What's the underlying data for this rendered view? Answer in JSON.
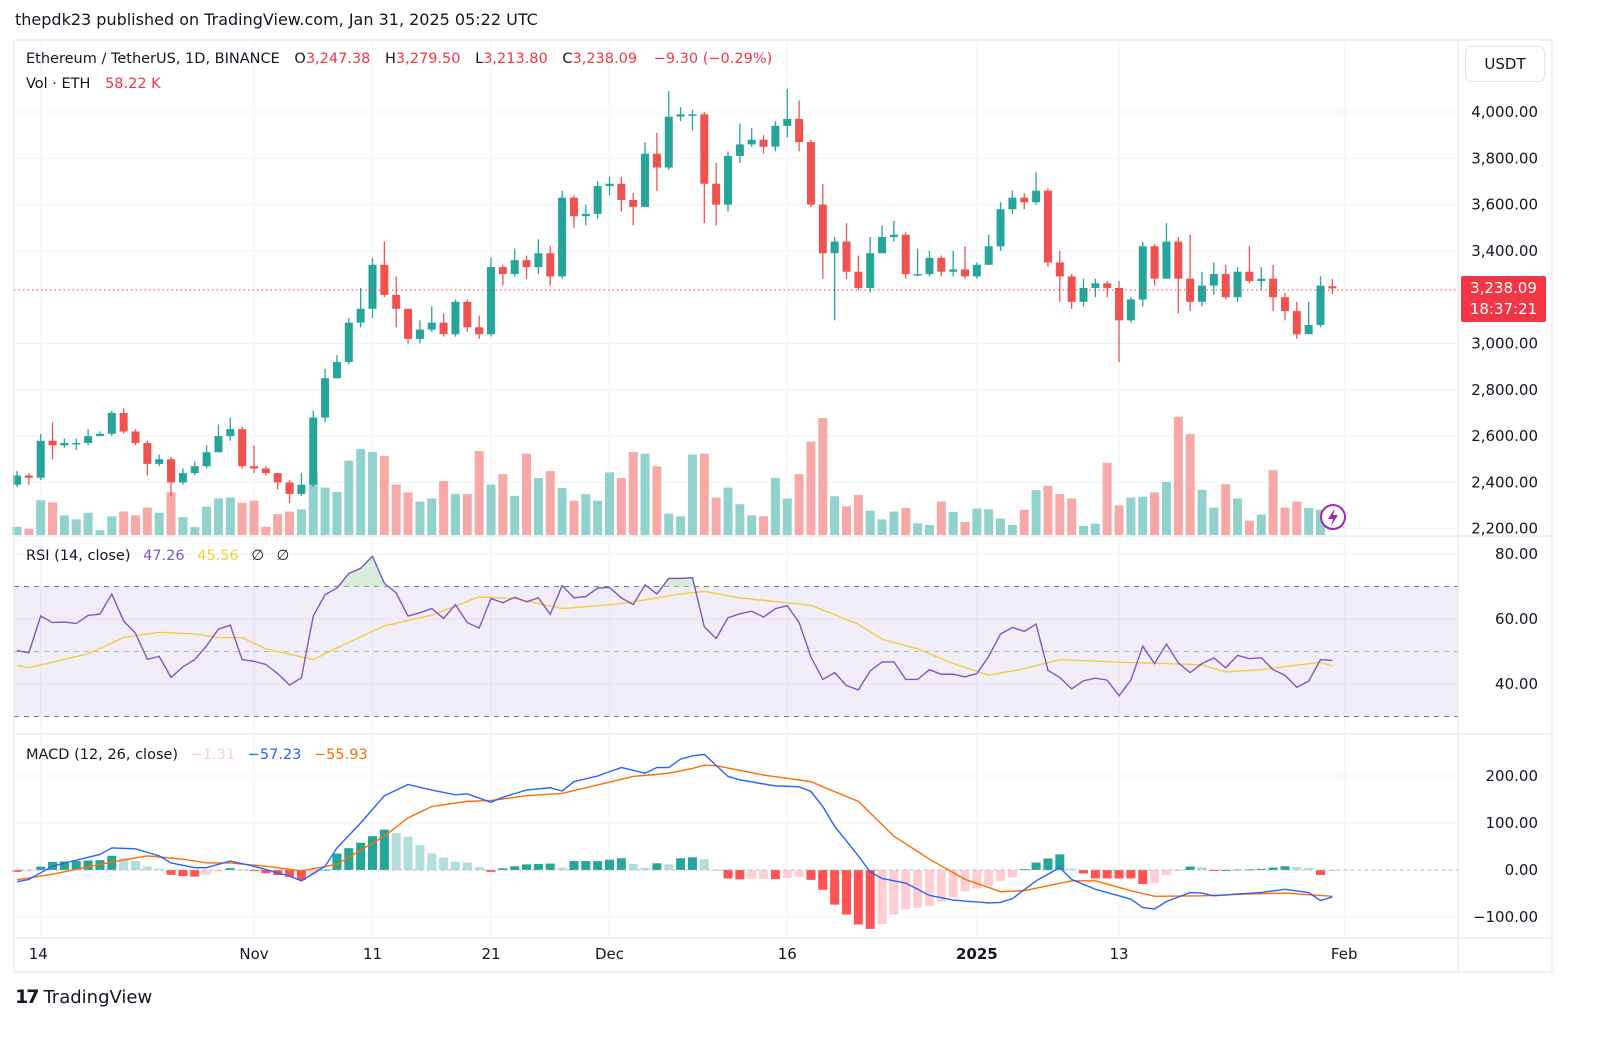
{
  "header": {
    "published": "thepdk23 published on TradingView.com, Jan 31, 2025 05:22 UTC"
  },
  "legend": {
    "symbol": "Ethereum / TetherUS, 1D, BINANCE",
    "o_label": "O",
    "o": "3,247.38",
    "h_label": "H",
    "h": "3,279.50",
    "l_label": "L",
    "l": "3,213.80",
    "c_label": "C",
    "c": "3,238.09",
    "change": "−9.30 (−0.29%)",
    "vol_label": "Vol · ETH",
    "vol": "58.22 K"
  },
  "scale": {
    "currency": "USDT",
    "last_price": "3,238.09",
    "countdown": "18:37:21"
  },
  "rsi_legend": {
    "label": "RSI (14, close)",
    "rsi": "47.26",
    "ma": "45.56",
    "v3": "∅",
    "v4": "∅"
  },
  "macd_legend": {
    "label": "MACD (12, 26, close)",
    "hist": "−1.31",
    "macd": "−57.23",
    "signal": "−55.93"
  },
  "logo": {
    "mark": "17",
    "text": "TradingView"
  },
  "colors": {
    "up": "#26a69a",
    "down": "#ef5350",
    "vol_up": "#92d2cc",
    "vol_down": "#f7a9a7",
    "rsi": "#7e57c2",
    "rsi_ma": "#f5cd3c",
    "macd": "#2962ff",
    "signal": "#ff6d00",
    "hist_up_strong": "#26a69a",
    "hist_up_weak": "#b2dfdb",
    "hist_down_strong": "#ff5252",
    "hist_down_weak": "#ffcdd2",
    "last_price": "#f23645"
  },
  "chart_data": [
    {
      "type": "candlestick",
      "title": "Ethereum / TetherUS, 1D, BINANCE",
      "x_ticks": [
        {
          "index": 2,
          "label": "14"
        },
        {
          "index": 20,
          "label": "Nov"
        },
        {
          "index": 30,
          "label": "11"
        },
        {
          "index": 40,
          "label": "21"
        },
        {
          "index": 50,
          "label": "Dec"
        },
        {
          "index": 65,
          "label": "16"
        },
        {
          "index": 81,
          "label": "2025",
          "bold": true
        },
        {
          "index": 93,
          "label": "13"
        },
        {
          "index": 112,
          "label": "Feb"
        }
      ],
      "y_ticks": [
        {
          "value": 4000,
          "label": "4,000.00"
        },
        {
          "value": 3800,
          "label": "3,800.00"
        },
        {
          "value": 3600,
          "label": "3,600.00"
        },
        {
          "value": 3400,
          "label": "3,400.00"
        },
        {
          "value": 3000,
          "label": "3,000.00"
        },
        {
          "value": 2800,
          "label": "2,800.00"
        },
        {
          "value": 2600,
          "label": "2,600.00"
        },
        {
          "value": 2400,
          "label": "2,400.00"
        },
        {
          "value": 2200,
          "label": "2,200.00"
        }
      ],
      "ylim": [
        2200,
        4000
      ],
      "first_open": 2390,
      "last_open": 3247.38,
      "close": [
        2430,
        2420,
        2580,
        2560,
        2570,
        2570,
        2600,
        2610,
        2700,
        2620,
        2570,
        2480,
        2500,
        2400,
        2440,
        2470,
        2530,
        2600,
        2630,
        2470,
        2460,
        2440,
        2400,
        2350,
        2390,
        2680,
        2850,
        2920,
        3090,
        3150,
        3340,
        3210,
        3150,
        3020,
        3060,
        3090,
        3040,
        3180,
        3070,
        3040,
        3330,
        3300,
        3360,
        3330,
        3390,
        3290,
        3630,
        3550,
        3560,
        3680,
        3690,
        3620,
        3590,
        3820,
        3760,
        3980,
        3990,
        3990,
        3690,
        3600,
        3810,
        3860,
        3880,
        3850,
        3940,
        3970,
        3870,
        3600,
        3390,
        3440,
        3310,
        3240,
        3390,
        3460,
        3470,
        3300,
        3300,
        3370,
        3310,
        3320,
        3290,
        3340,
        3420,
        3580,
        3630,
        3610,
        3660,
        3350,
        3290,
        3180,
        3240,
        3260,
        3240,
        3100,
        3190,
        3420,
        3280,
        3440,
        3280,
        3180,
        3250,
        3300,
        3200,
        3310,
        3270,
        3280,
        3200,
        3140,
        3040,
        3080,
        3250,
        3238.09
      ],
      "high": [
        2450,
        2440,
        2610,
        2660,
        2590,
        2590,
        2630,
        2620,
        2710,
        2720,
        2630,
        2580,
        2520,
        2510,
        2460,
        2490,
        2560,
        2650,
        2680,
        2640,
        2560,
        2470,
        2440,
        2410,
        2440,
        2710,
        2890,
        2950,
        3110,
        3240,
        3370,
        3440,
        3290,
        3150,
        3100,
        3160,
        3130,
        3190,
        3190,
        3120,
        3370,
        3340,
        3410,
        3380,
        3450,
        3420,
        3660,
        3640,
        3600,
        3700,
        3720,
        3720,
        3650,
        3870,
        3910,
        4090,
        4020,
        4010,
        4000,
        3780,
        3830,
        3950,
        3930,
        3900,
        3960,
        4100,
        4050,
        3880,
        3690,
        3460,
        3520,
        3380,
        3460,
        3510,
        3530,
        3480,
        3410,
        3400,
        3380,
        3400,
        3420,
        3350,
        3470,
        3610,
        3660,
        3650,
        3740,
        3670,
        3400,
        3300,
        3280,
        3280,
        3270,
        3270,
        3200,
        3440,
        3430,
        3520,
        3460,
        3470,
        3310,
        3350,
        3340,
        3330,
        3420,
        3330,
        3340,
        3220,
        3180,
        3180,
        3290,
        3279.5
      ],
      "low": [
        2380,
        2390,
        2410,
        2500,
        2550,
        2540,
        2560,
        2600,
        2600,
        2610,
        2560,
        2430,
        2470,
        2340,
        2390,
        2430,
        2460,
        2530,
        2580,
        2460,
        2440,
        2430,
        2370,
        2310,
        2340,
        2380,
        2660,
        2850,
        2910,
        3070,
        3110,
        3200,
        3070,
        3000,
        3000,
        3050,
        3030,
        3030,
        3050,
        3020,
        3030,
        3250,
        3290,
        3280,
        3300,
        3250,
        3280,
        3500,
        3510,
        3540,
        3640,
        3570,
        3510,
        3590,
        3660,
        3750,
        3960,
        3920,
        3520,
        3510,
        3570,
        3780,
        3850,
        3820,
        3830,
        3890,
        3830,
        3590,
        3280,
        3100,
        3280,
        3230,
        3220,
        3390,
        3440,
        3280,
        3290,
        3290,
        3290,
        3290,
        3280,
        3280,
        3340,
        3400,
        3560,
        3580,
        3600,
        3330,
        3180,
        3150,
        3160,
        3200,
        3200,
        2920,
        3090,
        3160,
        3250,
        3280,
        3130,
        3140,
        3160,
        3210,
        3190,
        3180,
        3260,
        3230,
        3140,
        3100,
        3020,
        3050,
        3070,
        3213.8
      ],
      "volume_k": [
        19,
        14,
        80,
        75,
        45,
        36,
        51,
        11,
        43,
        54,
        45,
        63,
        51,
        98,
        41,
        18,
        65,
        84,
        86,
        74,
        79,
        19,
        48,
        54,
        59,
        142,
        109,
        99,
        171,
        198,
        191,
        182,
        116,
        98,
        77,
        84,
        124,
        94,
        94,
        193,
        116,
        140,
        90,
        187,
        131,
        147,
        108,
        79,
        94,
        79,
        144,
        131,
        191,
        187,
        158,
        49,
        43,
        185,
        187,
        86,
        109,
        71,
        45,
        43,
        131,
        84,
        140,
        215,
        269,
        89,
        66,
        92,
        56,
        36,
        54,
        62,
        27,
        23,
        77,
        53,
        30,
        61,
        59,
        38,
        23,
        58,
        103,
        113,
        94,
        84,
        21,
        26,
        166,
        68,
        86,
        88,
        98,
        122,
        272,
        232,
        104,
        63,
        117,
        84,
        33,
        47,
        149,
        63,
        77,
        62,
        58.22
      ]
    },
    {
      "type": "line",
      "title": "RSI (14, close)",
      "ylim": [
        25,
        85
      ],
      "y_ticks": [
        {
          "value": 80,
          "label": "80.00"
        },
        {
          "value": 60,
          "label": "60.00"
        },
        {
          "value": 40,
          "label": "40.00"
        }
      ],
      "bands": {
        "upper": 70,
        "middle": 50,
        "lower": 30
      },
      "rsi": [
        50.3,
        49.6,
        60.9,
        58.9,
        59.1,
        58.6,
        61.1,
        61.5,
        67.7,
        59.4,
        55.6,
        47.6,
        48.5,
        42,
        45.3,
        47.5,
        51.8,
        56.9,
        58.1,
        47.5,
        47,
        46,
        43.2,
        39.7,
        41.9,
        60.9,
        67.5,
        69.5,
        74,
        75.6,
        79.3,
        71,
        68,
        60.9,
        61.9,
        63.2,
        60.2,
        64.4,
        58.9,
        57.2,
        66.3,
        65,
        66.7,
        65.3,
        66.5,
        61.4,
        70.3,
        66.5,
        66.9,
        69.5,
        69.7,
        66.5,
        64.4,
        70.5,
        67.7,
        72.5,
        72.5,
        72.7,
        57.6,
        54,
        60.4,
        61.6,
        62.4,
        60.6,
        63.2,
        64.1,
        58.9,
        48.3,
        41.4,
        43.5,
        39.5,
        38.2,
        44,
        46.8,
        46.8,
        41.4,
        41.4,
        44.4,
        43,
        43,
        42.2,
        43.2,
        48.5,
        55.4,
        57.4,
        56.2,
        58.4,
        44.2,
        42,
        38.5,
        41,
        41.8,
        41.2,
        36.4,
        41.2,
        51.6,
        46.3,
        52.3,
        46.5,
        43.5,
        46.3,
        48,
        45,
        48.8,
        47.8,
        48.1,
        44.4,
        42.7,
        39,
        40.9,
        47.5,
        47.26
      ],
      "rsi_ma_points": [
        [
          0,
          45.8
        ],
        [
          1,
          45
        ],
        [
          6,
          49.3
        ],
        [
          9,
          54.3
        ],
        [
          12,
          55.9
        ],
        [
          15,
          55.4
        ],
        [
          17,
          54.3
        ],
        [
          19,
          54.3
        ],
        [
          21,
          50.8
        ],
        [
          25,
          47.5
        ],
        [
          27,
          51.1
        ],
        [
          31,
          57.9
        ],
        [
          35,
          61.2
        ],
        [
          39,
          66.8
        ],
        [
          42,
          66.3
        ],
        [
          46,
          63.2
        ],
        [
          51,
          64.7
        ],
        [
          56,
          67.7
        ],
        [
          58,
          68.5
        ],
        [
          61,
          66.5
        ],
        [
          67,
          64.2
        ],
        [
          71,
          58.4
        ],
        [
          73,
          53.8
        ],
        [
          76,
          50.8
        ],
        [
          79,
          46.3
        ],
        [
          82,
          42.7
        ],
        [
          85,
          44.7
        ],
        [
          88,
          47.5
        ],
        [
          93,
          46.7
        ],
        [
          96,
          46.4
        ],
        [
          100,
          45.9
        ],
        [
          102,
          43.7
        ],
        [
          105,
          44.4
        ],
        [
          110,
          46.7
        ],
        [
          111,
          45.56
        ]
      ]
    },
    {
      "type": "line",
      "title": "MACD (12, 26, close)",
      "y_ticks": [
        {
          "value": 200,
          "label": "200.00"
        },
        {
          "value": 100,
          "label": "100.00"
        },
        {
          "value": 0,
          "label": "0.00"
        },
        {
          "value": -100,
          "label": "−100.00"
        }
      ],
      "macd_points": [
        [
          0,
          -25
        ],
        [
          1,
          -20
        ],
        [
          3,
          8
        ],
        [
          5,
          21
        ],
        [
          7,
          33
        ],
        [
          8,
          47
        ],
        [
          10,
          45
        ],
        [
          12,
          30
        ],
        [
          13,
          15
        ],
        [
          15,
          5
        ],
        [
          16,
          5
        ],
        [
          18,
          19
        ],
        [
          20,
          8
        ],
        [
          21,
          1
        ],
        [
          23,
          -13
        ],
        [
          24,
          -23
        ],
        [
          26,
          8
        ],
        [
          27,
          47
        ],
        [
          29,
          100
        ],
        [
          31,
          158
        ],
        [
          33,
          182
        ],
        [
          35,
          170
        ],
        [
          37,
          160
        ],
        [
          38,
          162
        ],
        [
          40,
          144
        ],
        [
          41,
          155
        ],
        [
          43,
          170
        ],
        [
          45,
          175
        ],
        [
          46,
          168
        ],
        [
          47,
          188
        ],
        [
          49,
          200
        ],
        [
          51,
          218
        ],
        [
          53,
          206
        ],
        [
          54,
          218
        ],
        [
          55,
          218
        ],
        [
          56,
          236
        ],
        [
          57,
          243
        ],
        [
          58,
          246
        ],
        [
          60,
          199
        ],
        [
          61,
          192
        ],
        [
          63,
          183
        ],
        [
          64,
          179
        ],
        [
          66,
          177
        ],
        [
          67,
          167
        ],
        [
          68,
          135
        ],
        [
          69,
          93
        ],
        [
          71,
          30
        ],
        [
          72,
          -4
        ],
        [
          73,
          -18
        ],
        [
          75,
          -28
        ],
        [
          77,
          -54
        ],
        [
          79,
          -64
        ],
        [
          82,
          -70
        ],
        [
          83,
          -69
        ],
        [
          84,
          -61
        ],
        [
          86,
          -23
        ],
        [
          88,
          5
        ],
        [
          89,
          -20
        ],
        [
          91,
          -41
        ],
        [
          94,
          -62
        ],
        [
          95,
          -80
        ],
        [
          96,
          -83
        ],
        [
          97,
          -67
        ],
        [
          99,
          -48
        ],
        [
          100,
          -49
        ],
        [
          101,
          -55
        ],
        [
          103,
          -51
        ],
        [
          105,
          -48
        ],
        [
          107,
          -41
        ],
        [
          109,
          -48
        ],
        [
          110,
          -65
        ],
        [
          111,
          -57.23
        ]
      ],
      "signal_points": [
        [
          0,
          -21
        ],
        [
          3,
          -9
        ],
        [
          7,
          12
        ],
        [
          10,
          26
        ],
        [
          11,
          30
        ],
        [
          14,
          23
        ],
        [
          16,
          15
        ],
        [
          18,
          15
        ],
        [
          21,
          8
        ],
        [
          24,
          -2
        ],
        [
          27,
          12
        ],
        [
          31,
          72
        ],
        [
          33,
          111
        ],
        [
          35,
          135
        ],
        [
          38,
          146
        ],
        [
          40,
          148
        ],
        [
          43,
          158
        ],
        [
          46,
          163
        ],
        [
          49,
          181
        ],
        [
          52,
          199
        ],
        [
          55,
          206
        ],
        [
          57,
          216
        ],
        [
          58,
          223
        ],
        [
          59,
          222
        ],
        [
          63,
          202
        ],
        [
          67,
          188
        ],
        [
          68,
          177
        ],
        [
          71,
          146
        ],
        [
          74,
          72
        ],
        [
          77,
          23
        ],
        [
          80,
          -20
        ],
        [
          83,
          -46
        ],
        [
          85,
          -44
        ],
        [
          89,
          -23
        ],
        [
          91,
          -23
        ],
        [
          94,
          -44
        ],
        [
          96,
          -56
        ],
        [
          100,
          -55
        ],
        [
          104,
          -51
        ],
        [
          107,
          -49
        ],
        [
          111,
          -55.93
        ]
      ],
      "histogram": "macd minus signal"
    }
  ]
}
